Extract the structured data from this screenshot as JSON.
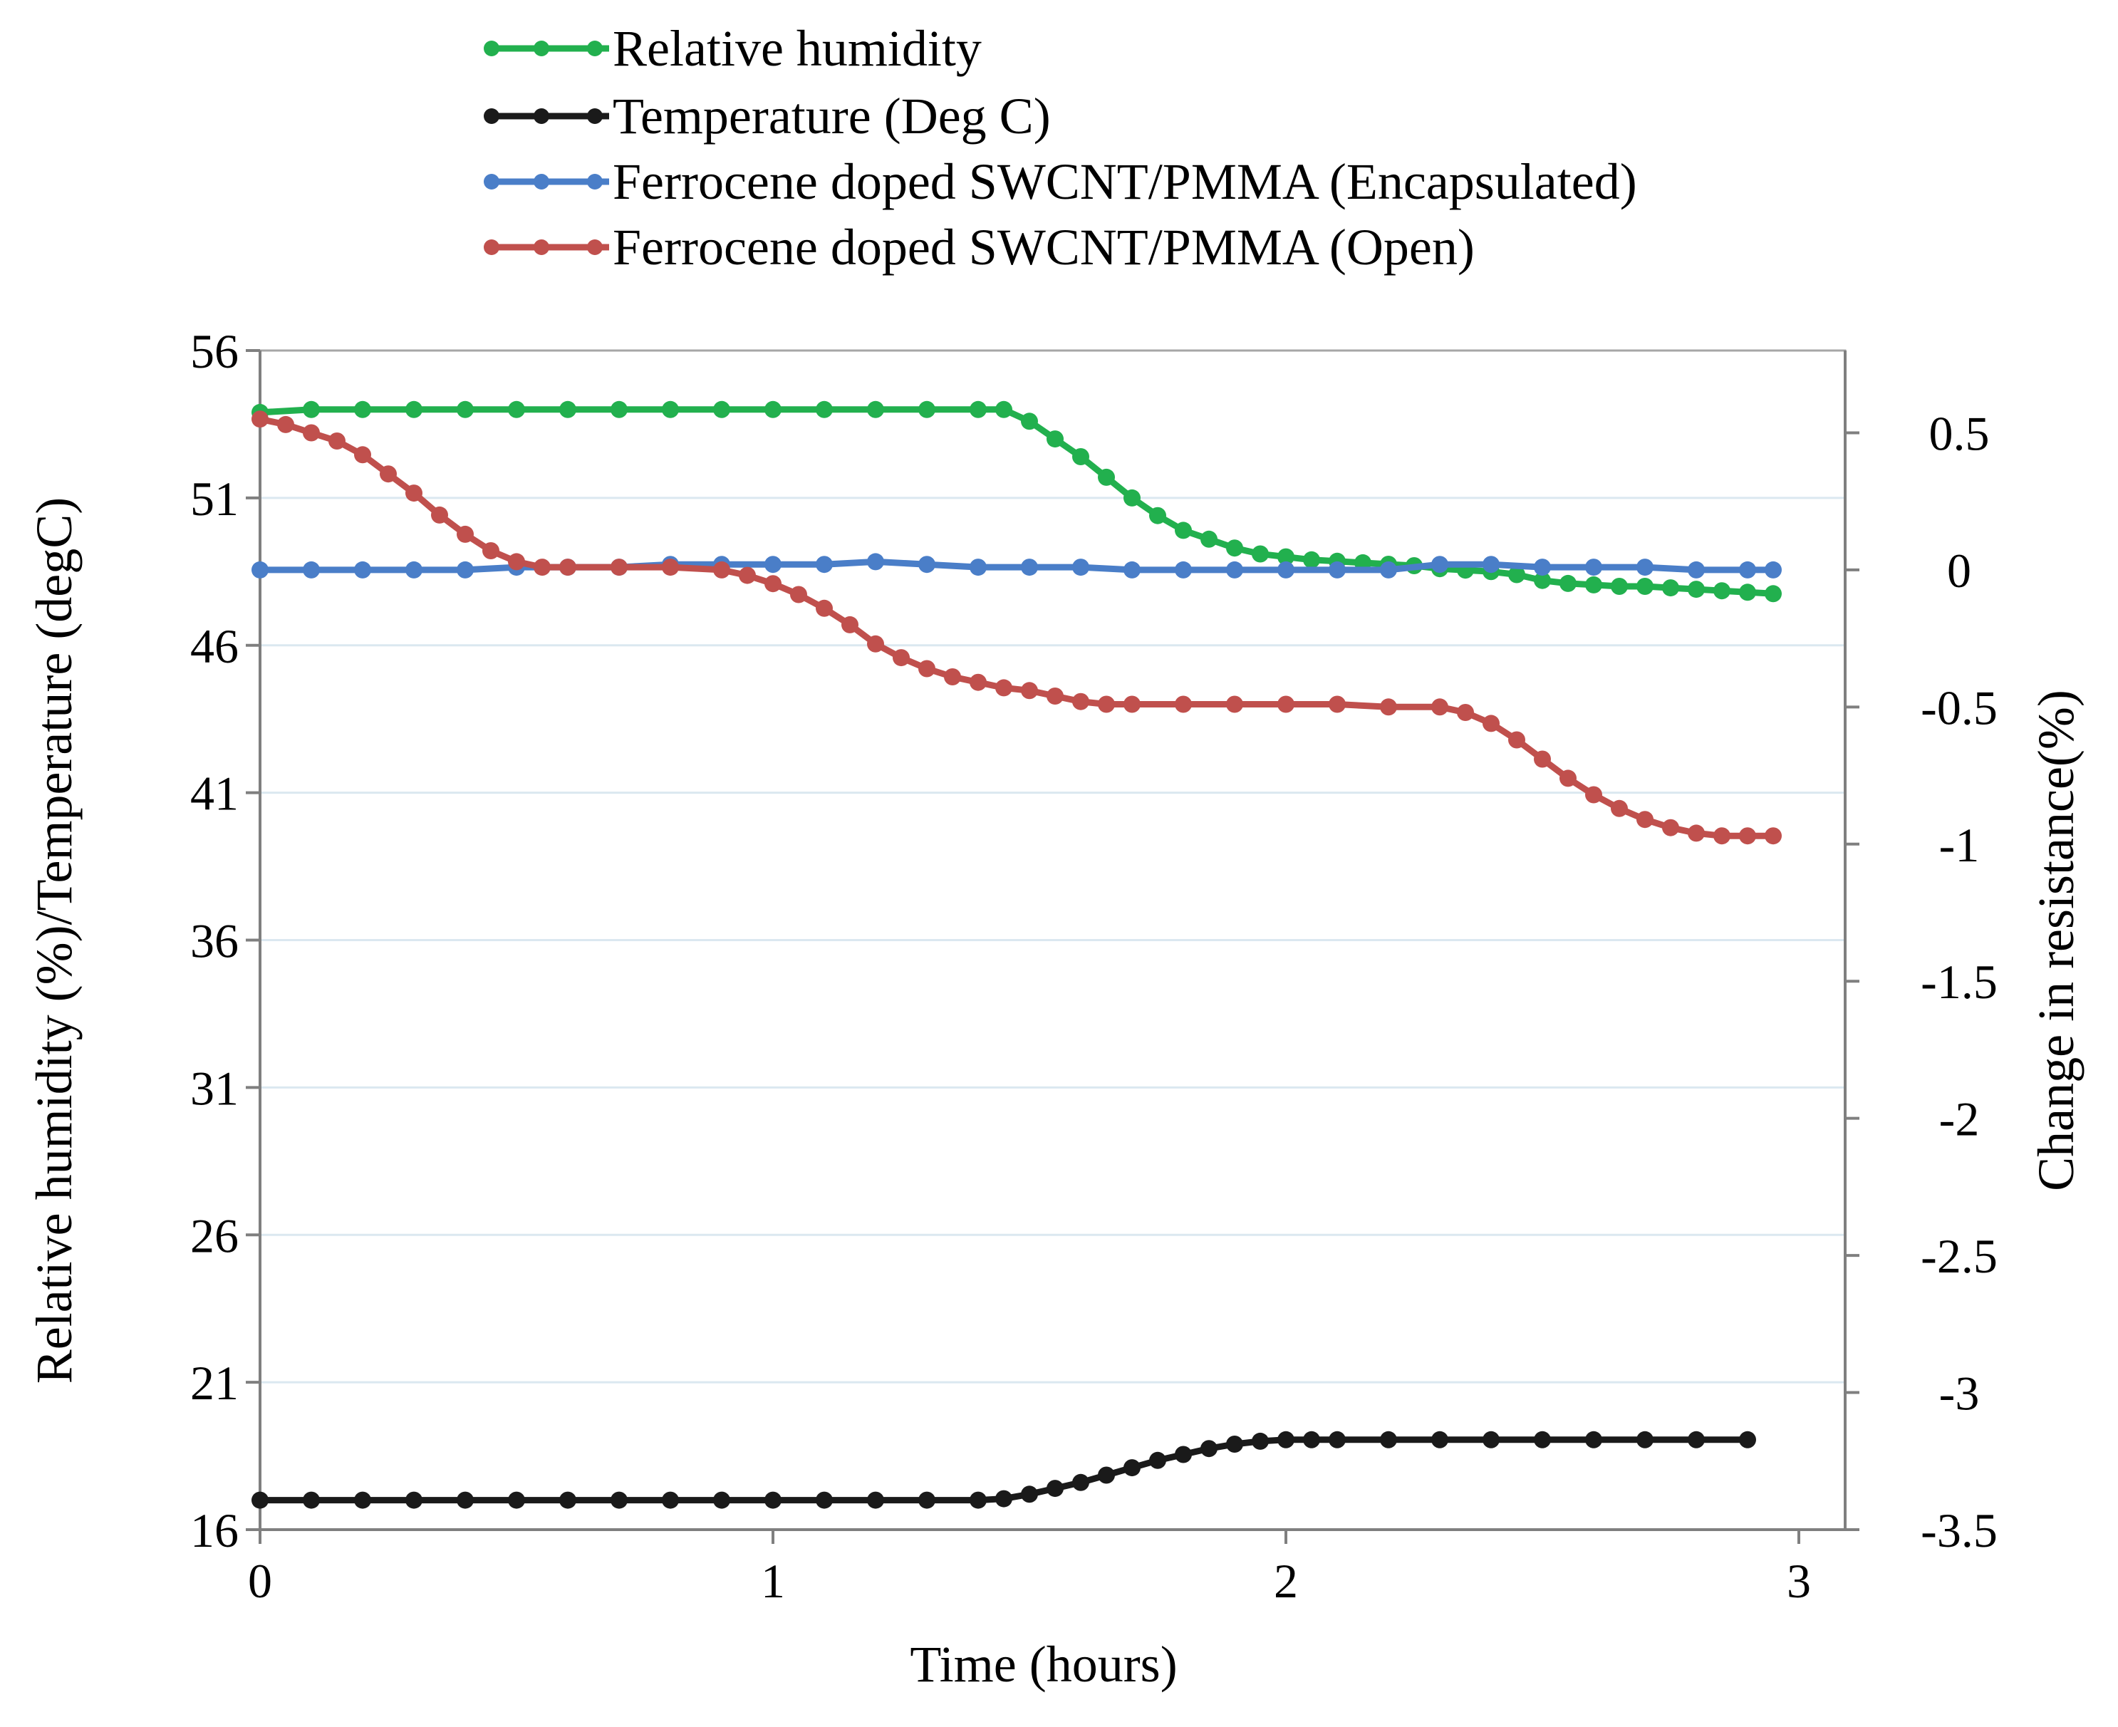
{
  "chart_data": {
    "type": "line",
    "title": "",
    "xlabel": "Time (hours)",
    "ylabel_left": "Relative humidity (%)/Temperature (degC)",
    "ylabel_right": "Change in resistance(%)",
    "xlim": [
      0,
      3.07
    ],
    "ylim_left": [
      16,
      56
    ],
    "ylim_right": [
      -3.5,
      0.8
    ],
    "x_ticks": [
      "0",
      "1",
      "2",
      "3"
    ],
    "y_ticks_left": [
      "16",
      "21",
      "26",
      "31",
      "36",
      "41",
      "46",
      "51",
      "56"
    ],
    "y_ticks_right": [
      "0.5",
      "0",
      "-0.5",
      "-1",
      "-1.5",
      "-2",
      "-2.5",
      "-3",
      "-3.5"
    ],
    "grid": "horizontal",
    "legend_position": "top",
    "series": [
      {
        "name": "Relative humidity",
        "axis": "left",
        "color": "#22b04e",
        "x": [
          0,
          0.1,
          0.2,
          0.3,
          0.4,
          0.5,
          0.6,
          0.7,
          0.8,
          0.9,
          1.0,
          1.1,
          1.2,
          1.3,
          1.4,
          1.45,
          1.5,
          1.55,
          1.6,
          1.65,
          1.7,
          1.75,
          1.8,
          1.85,
          1.9,
          1.95,
          2.0,
          2.05,
          2.1,
          2.15,
          2.2,
          2.25,
          2.3,
          2.35,
          2.4,
          2.45,
          2.5,
          2.55,
          2.6,
          2.65,
          2.7,
          2.75,
          2.8,
          2.85,
          2.9,
          2.95
        ],
        "y": [
          53.9,
          54.0,
          54.0,
          54.0,
          54.0,
          54.0,
          54.0,
          54.0,
          54.0,
          54.0,
          54.0,
          54.0,
          54.0,
          54.0,
          54.0,
          54.0,
          53.6,
          53.0,
          52.4,
          51.7,
          51.0,
          50.4,
          49.9,
          49.6,
          49.3,
          49.1,
          49.0,
          48.9,
          48.85,
          48.8,
          48.75,
          48.7,
          48.6,
          48.55,
          48.5,
          48.4,
          48.2,
          48.1,
          48.05,
          48.0,
          48.0,
          47.95,
          47.9,
          47.85,
          47.8,
          47.75
        ]
      },
      {
        "name": "Temperature (Deg C)",
        "axis": "left",
        "color": "#1a1a1a",
        "x": [
          0,
          0.1,
          0.2,
          0.3,
          0.4,
          0.5,
          0.6,
          0.7,
          0.8,
          0.9,
          1.0,
          1.1,
          1.2,
          1.3,
          1.4,
          1.45,
          1.5,
          1.55,
          1.6,
          1.65,
          1.7,
          1.75,
          1.8,
          1.85,
          1.9,
          1.95,
          2.0,
          2.05,
          2.1,
          2.2,
          2.3,
          2.4,
          2.5,
          2.6,
          2.7,
          2.8,
          2.9
        ],
        "y": [
          17.0,
          17.0,
          17.0,
          17.0,
          17.0,
          17.0,
          17.0,
          17.0,
          17.0,
          17.0,
          17.0,
          17.0,
          17.0,
          17.0,
          17.0,
          17.05,
          17.2,
          17.4,
          17.6,
          17.85,
          18.1,
          18.35,
          18.55,
          18.75,
          18.9,
          19.0,
          19.05,
          19.05,
          19.05,
          19.05,
          19.05,
          19.05,
          19.05,
          19.05,
          19.05,
          19.05,
          19.05
        ]
      },
      {
        "name": "Ferrocene doped SWCNT/PMMA (Encapsulated)",
        "axis": "right",
        "color": "#4a7ec8",
        "x": [
          0,
          0.1,
          0.2,
          0.3,
          0.4,
          0.5,
          0.6,
          0.7,
          0.8,
          0.9,
          1.0,
          1.1,
          1.2,
          1.3,
          1.4,
          1.5,
          1.6,
          1.7,
          1.8,
          1.9,
          2.0,
          2.1,
          2.2,
          2.3,
          2.4,
          2.5,
          2.6,
          2.7,
          2.8,
          2.9,
          2.95
        ],
        "y": [
          0.0,
          0.0,
          0.0,
          0.0,
          0.0,
          0.01,
          0.01,
          0.01,
          0.02,
          0.02,
          0.02,
          0.02,
          0.03,
          0.02,
          0.01,
          0.01,
          0.01,
          0.0,
          0.0,
          0.0,
          0.0,
          0.0,
          0.0,
          0.02,
          0.02,
          0.01,
          0.01,
          0.01,
          0.0,
          0.0,
          0.0
        ]
      },
      {
        "name": "Ferrocene doped SWCNT/PMMA (Open)",
        "axis": "right",
        "color": "#c0504d",
        "x": [
          0,
          0.05,
          0.1,
          0.15,
          0.2,
          0.25,
          0.3,
          0.35,
          0.4,
          0.45,
          0.5,
          0.55,
          0.6,
          0.7,
          0.8,
          0.9,
          0.95,
          1.0,
          1.05,
          1.1,
          1.15,
          1.2,
          1.25,
          1.3,
          1.35,
          1.4,
          1.45,
          1.5,
          1.55,
          1.6,
          1.65,
          1.7,
          1.8,
          1.9,
          2.0,
          2.1,
          2.2,
          2.3,
          2.35,
          2.4,
          2.45,
          2.5,
          2.55,
          2.6,
          2.65,
          2.7,
          2.75,
          2.8,
          2.85,
          2.9,
          2.95
        ],
        "y": [
          0.55,
          0.53,
          0.5,
          0.47,
          0.42,
          0.35,
          0.28,
          0.2,
          0.13,
          0.07,
          0.03,
          0.01,
          0.01,
          0.01,
          0.01,
          0.0,
          -0.02,
          -0.05,
          -0.09,
          -0.14,
          -0.2,
          -0.27,
          -0.32,
          -0.36,
          -0.39,
          -0.41,
          -0.43,
          -0.44,
          -0.46,
          -0.48,
          -0.49,
          -0.49,
          -0.49,
          -0.49,
          -0.49,
          -0.49,
          -0.5,
          -0.5,
          -0.52,
          -0.56,
          -0.62,
          -0.69,
          -0.76,
          -0.82,
          -0.87,
          -0.91,
          -0.94,
          -0.96,
          -0.97,
          -0.97,
          -0.97
        ]
      }
    ]
  }
}
